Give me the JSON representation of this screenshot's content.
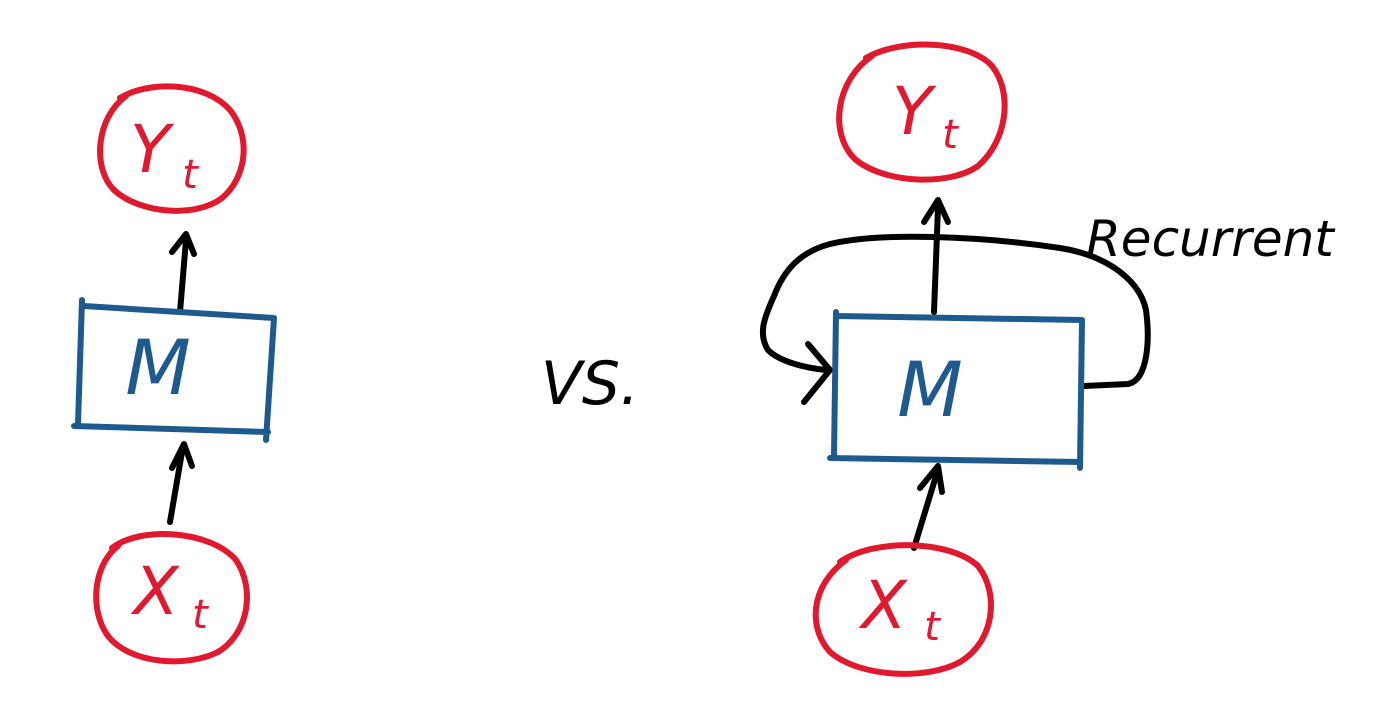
{
  "colors": {
    "node": "#e0192e",
    "model": "#1f5a8f",
    "arrow": "#000000",
    "text": "#000000"
  },
  "left_diagram": {
    "output_node": {
      "main": "Y",
      "sub": "t"
    },
    "model": {
      "label": "M"
    },
    "input_node": {
      "main": "X",
      "sub": "t"
    }
  },
  "separator": {
    "label": "VS."
  },
  "right_diagram": {
    "output_node": {
      "main": "Y",
      "sub": "t"
    },
    "model": {
      "label": "M"
    },
    "input_node": {
      "main": "X",
      "sub": "t"
    },
    "loop_label": "Recurrent"
  }
}
